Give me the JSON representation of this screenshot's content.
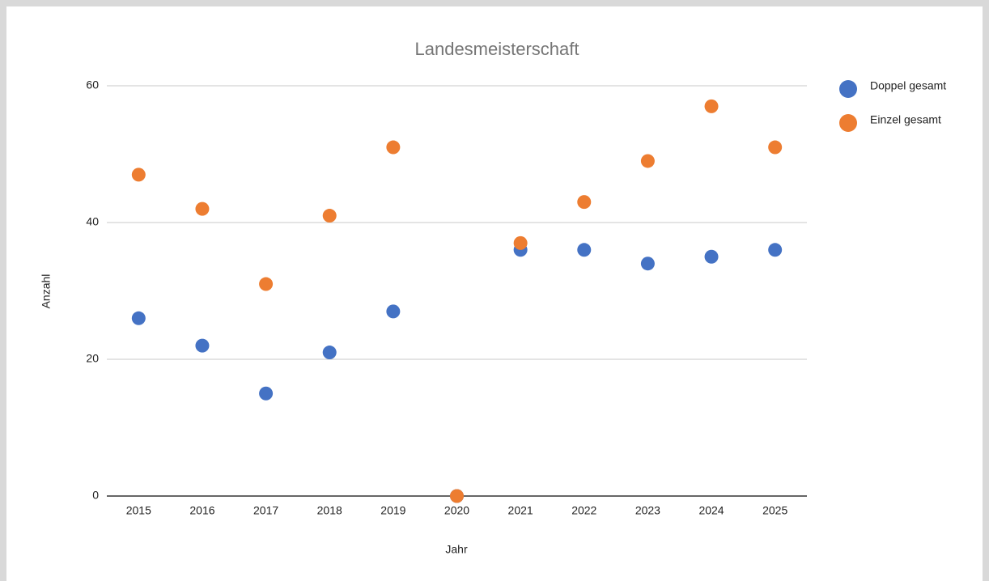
{
  "chart_data": {
    "type": "scatter",
    "title": "Landesmeisterschaft",
    "x_label": "Jahr",
    "y_label": "Anzahl",
    "categories": [
      "2015",
      "2016",
      "2017",
      "2018",
      "2019",
      "2020",
      "2021",
      "2022",
      "2023",
      "2024",
      "2025"
    ],
    "series": [
      {
        "name": "Doppel gesamt",
        "color": "#4472c4",
        "values": [
          26,
          22,
          15,
          21,
          27,
          0,
          36,
          36,
          34,
          35,
          36
        ]
      },
      {
        "name": "Einzel gesamt",
        "color": "#ed7d31",
        "values": [
          47,
          42,
          31,
          41,
          51,
          0,
          37,
          43,
          49,
          57,
          51
        ]
      }
    ],
    "ylim": [
      0,
      60
    ],
    "yticks": [
      0,
      20,
      40,
      60
    ],
    "grid": true,
    "legend": "right"
  }
}
